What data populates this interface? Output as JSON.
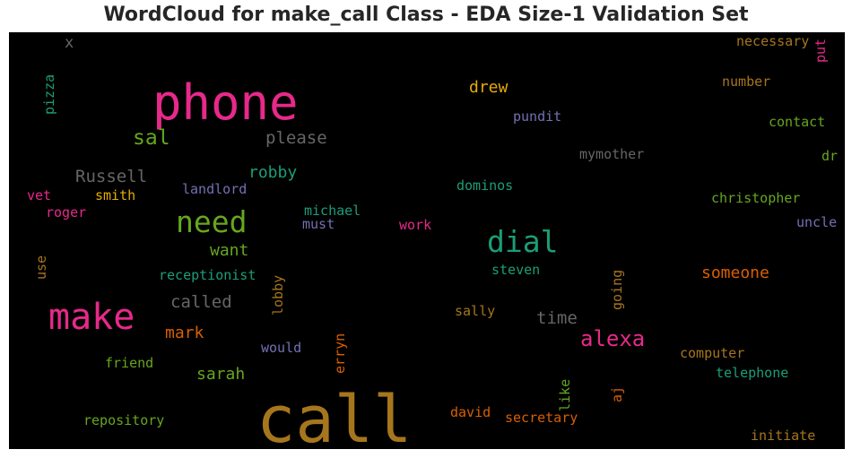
{
  "chart_data": {
    "type": "wordcloud",
    "title": "WordCloud for make_call Class - EDA Size-1 Validation Set",
    "background": "#000000",
    "words": [
      {
        "text": "call",
        "color": "#a6761d",
        "size": 72
      },
      {
        "text": "phone",
        "color": "#e7298a",
        "size": 54
      },
      {
        "text": "make",
        "color": "#e7298a",
        "size": 40
      },
      {
        "text": "need",
        "color": "#66a61e",
        "size": 33
      },
      {
        "text": "dial",
        "color": "#1b9e77",
        "size": 33
      },
      {
        "text": "alexa",
        "color": "#e7298a",
        "size": 24
      },
      {
        "text": "sal",
        "color": "#66a61e",
        "size": 23
      },
      {
        "text": "please",
        "color": "#666666",
        "size": 19
      },
      {
        "text": "Russell",
        "color": "#666666",
        "size": 19
      },
      {
        "text": "called",
        "color": "#666666",
        "size": 19
      },
      {
        "text": "time",
        "color": "#666666",
        "size": 19
      },
      {
        "text": "drew",
        "color": "#e6ab02",
        "size": 18
      },
      {
        "text": "robby",
        "color": "#1b9e77",
        "size": 18
      },
      {
        "text": "want",
        "color": "#66a61e",
        "size": 18
      },
      {
        "text": "someone",
        "color": "#d95f02",
        "size": 18
      },
      {
        "text": "mark",
        "color": "#d95f02",
        "size": 18
      },
      {
        "text": "sarah",
        "color": "#66a61e",
        "size": 18
      },
      {
        "text": "x",
        "color": "#666666",
        "size": 17
      },
      {
        "text": "necessary",
        "color": "#a6761d",
        "size": 15
      },
      {
        "text": "put",
        "color": "#e7298a",
        "size": 15
      },
      {
        "text": "pizza",
        "color": "#1b9e77",
        "size": 15
      },
      {
        "text": "number",
        "color": "#a6761d",
        "size": 15
      },
      {
        "text": "pundit",
        "color": "#7570b3",
        "size": 15
      },
      {
        "text": "contact",
        "color": "#66a61e",
        "size": 15
      },
      {
        "text": "mymother",
        "color": "#666666",
        "size": 15
      },
      {
        "text": "dr",
        "color": "#66a61e",
        "size": 15
      },
      {
        "text": "smith",
        "color": "#e6ab02",
        "size": 15
      },
      {
        "text": "vet",
        "color": "#e7298a",
        "size": 15
      },
      {
        "text": "landlord",
        "color": "#7570b3",
        "size": 15
      },
      {
        "text": "dominos",
        "color": "#1b9e77",
        "size": 15
      },
      {
        "text": "christopher",
        "color": "#66a61e",
        "size": 15
      },
      {
        "text": "roger",
        "color": "#e7298a",
        "size": 15
      },
      {
        "text": "michael",
        "color": "#1b9e77",
        "size": 15
      },
      {
        "text": "must",
        "color": "#7570b3",
        "size": 15
      },
      {
        "text": "work",
        "color": "#e7298a",
        "size": 15
      },
      {
        "text": "uncle",
        "color": "#7570b3",
        "size": 15
      },
      {
        "text": "use",
        "color": "#a6761d",
        "size": 15
      },
      {
        "text": "receptionist",
        "color": "#1b9e77",
        "size": 15
      },
      {
        "text": "lobby",
        "color": "#a6761d",
        "size": 15
      },
      {
        "text": "steven",
        "color": "#1b9e77",
        "size": 15
      },
      {
        "text": "going",
        "color": "#a6761d",
        "size": 15
      },
      {
        "text": "sally",
        "color": "#a6761d",
        "size": 15
      },
      {
        "text": "would",
        "color": "#7570b3",
        "size": 15
      },
      {
        "text": "erryn",
        "color": "#d95f02",
        "size": 15
      },
      {
        "text": "computer",
        "color": "#a6761d",
        "size": 15
      },
      {
        "text": "friend",
        "color": "#66a61e",
        "size": 15
      },
      {
        "text": "telephone",
        "color": "#1b9e77",
        "size": 15
      },
      {
        "text": "like",
        "color": "#66a61e",
        "size": 15
      },
      {
        "text": "aj",
        "color": "#d95f02",
        "size": 15
      },
      {
        "text": "repository",
        "color": "#66a61e",
        "size": 15
      },
      {
        "text": "david",
        "color": "#d95f02",
        "size": 15
      },
      {
        "text": "secretary",
        "color": "#d95f02",
        "size": 15
      },
      {
        "text": "initiate",
        "color": "#a6761d",
        "size": 15
      }
    ]
  }
}
